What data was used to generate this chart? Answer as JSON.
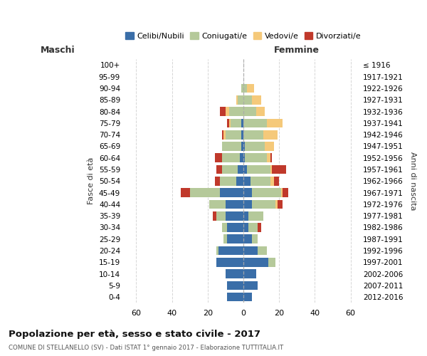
{
  "age_groups": [
    "0-4",
    "5-9",
    "10-14",
    "15-19",
    "20-24",
    "25-29",
    "30-34",
    "35-39",
    "40-44",
    "45-49",
    "50-54",
    "55-59",
    "60-64",
    "65-69",
    "70-74",
    "75-79",
    "80-84",
    "85-89",
    "90-94",
    "95-99",
    "100+"
  ],
  "birth_years": [
    "2012-2016",
    "2007-2011",
    "2002-2006",
    "1997-2001",
    "1992-1996",
    "1987-1991",
    "1982-1986",
    "1977-1981",
    "1972-1976",
    "1967-1971",
    "1962-1966",
    "1957-1961",
    "1952-1956",
    "1947-1951",
    "1942-1946",
    "1937-1941",
    "1932-1936",
    "1927-1931",
    "1922-1926",
    "1917-1921",
    "≤ 1916"
  ],
  "maschi": {
    "celibi": [
      9,
      9,
      10,
      15,
      14,
      9,
      9,
      10,
      10,
      13,
      4,
      3,
      2,
      1,
      1,
      1,
      0,
      0,
      0,
      0,
      0
    ],
    "coniugati": [
      0,
      0,
      0,
      0,
      1,
      2,
      3,
      5,
      9,
      17,
      9,
      9,
      10,
      11,
      9,
      6,
      8,
      3,
      1,
      0,
      0
    ],
    "vedovi": [
      0,
      0,
      0,
      0,
      0,
      0,
      0,
      0,
      0,
      0,
      0,
      0,
      0,
      0,
      1,
      1,
      2,
      1,
      0,
      0,
      0
    ],
    "divorziati": [
      0,
      0,
      0,
      0,
      0,
      0,
      0,
      2,
      0,
      5,
      3,
      3,
      4,
      0,
      1,
      1,
      3,
      0,
      0,
      0,
      0
    ]
  },
  "femmine": {
    "nubili": [
      5,
      8,
      7,
      14,
      8,
      5,
      3,
      3,
      5,
      5,
      4,
      2,
      1,
      1,
      0,
      0,
      0,
      0,
      0,
      0,
      0
    ],
    "coniugate": [
      0,
      0,
      0,
      4,
      5,
      3,
      5,
      8,
      13,
      16,
      11,
      13,
      12,
      11,
      11,
      13,
      7,
      5,
      2,
      0,
      0
    ],
    "vedove": [
      0,
      0,
      0,
      0,
      0,
      0,
      0,
      0,
      1,
      1,
      2,
      1,
      2,
      5,
      8,
      9,
      5,
      5,
      4,
      0,
      0
    ],
    "divorziate": [
      0,
      0,
      0,
      0,
      0,
      0,
      2,
      0,
      3,
      3,
      3,
      8,
      1,
      0,
      0,
      0,
      0,
      0,
      0,
      0,
      0
    ]
  },
  "colors": {
    "celibi": "#3a6ea8",
    "coniugati": "#b5c99a",
    "vedovi": "#f5c97a",
    "divorziati": "#c0392b"
  },
  "xlim": 65,
  "title": "Popolazione per età, sesso e stato civile - 2017",
  "subtitle": "COMUNE DI STELLANELLO (SV) - Dati ISTAT 1° gennaio 2017 - Elaborazione TUTTITALIA.IT",
  "ylabel_left": "Fasce di età",
  "ylabel_right": "Anni di nascita",
  "xlabel_left": "Maschi",
  "xlabel_right": "Femmine",
  "legend_labels": [
    "Celibi/Nubili",
    "Coniugati/e",
    "Vedovi/e",
    "Divorziati/e"
  ],
  "xticks": [
    -60,
    -40,
    -20,
    0,
    20,
    40,
    60
  ]
}
